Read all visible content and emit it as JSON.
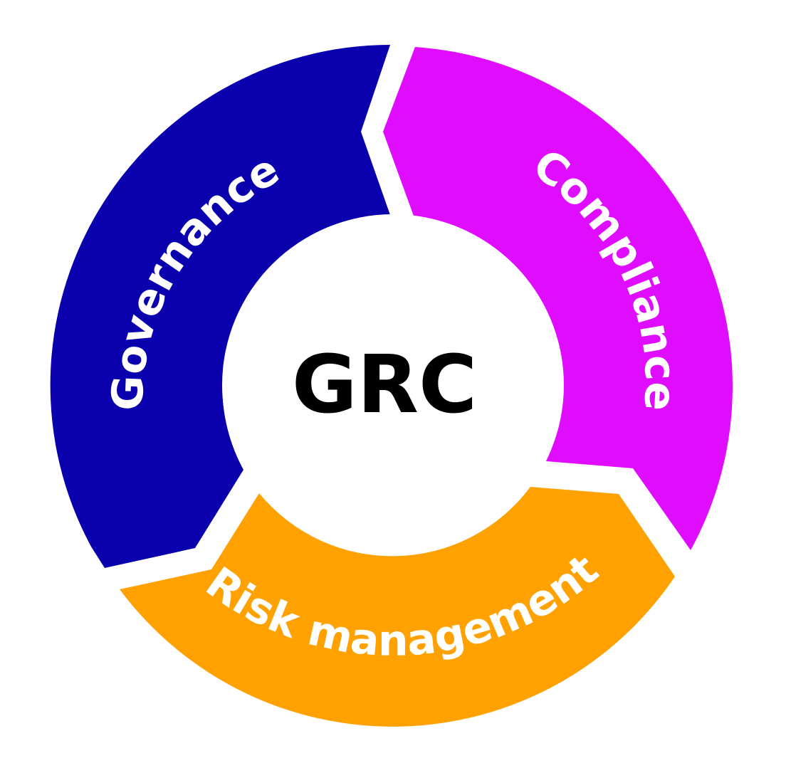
{
  "center": {
    "label": "GRC",
    "color": "#000000",
    "background": "#ffffff"
  },
  "segments": [
    {
      "id": "governance",
      "label": "Governance",
      "color": "#0a00ad",
      "text_color": "#ffffff"
    },
    {
      "id": "compliance",
      "label": "Compliance",
      "color": "#e00cff",
      "text_color": "#ffffff"
    },
    {
      "id": "risk",
      "label": "Risk management",
      "color": "#ffa100",
      "text_color": "#ffffff"
    }
  ]
}
